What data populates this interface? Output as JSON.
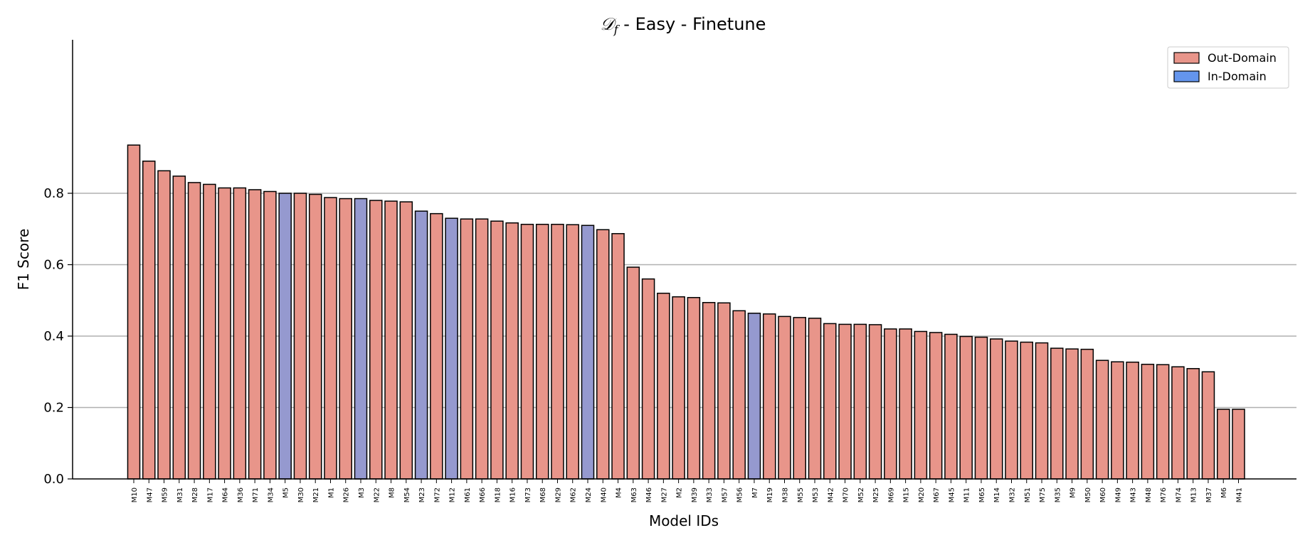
{
  "chart_data": {
    "type": "bar",
    "title_prefix": "𝒟",
    "title_subscript": "f",
    "title_rest": " - Easy - Finetune",
    "xlabel": "Model IDs",
    "ylabel": "F1 Score",
    "ylim": [
      0,
      0.98
    ],
    "yticks": [
      "0.0",
      "0.2",
      "0.4",
      "0.6",
      "0.8"
    ],
    "grid": "horizontal",
    "legend_position": "top-right",
    "legend": [
      {
        "label": "Out-Domain",
        "color": "#e8958a"
      },
      {
        "label": "In-Domain",
        "color": "#6495ed"
      }
    ],
    "colors": {
      "out_domain_bar": "#e8958a",
      "in_domain_bar": "#9599cf",
      "edge": "#000000",
      "grid": "#b0b0b0"
    },
    "categories": [
      "M10",
      "M47",
      "M59",
      "M31",
      "M28",
      "M17",
      "M64",
      "M36",
      "M71",
      "M34",
      "M5",
      "M30",
      "M21",
      "M1",
      "M26",
      "M3",
      "M22",
      "M8",
      "M54",
      "M23",
      "M72",
      "M12",
      "M61",
      "M66",
      "M18",
      "M16",
      "M73",
      "M68",
      "M29",
      "M62",
      "M24",
      "M40",
      "M4",
      "M63",
      "M46",
      "M27",
      "M2",
      "M39",
      "M33",
      "M57",
      "M56",
      "M7",
      "M19",
      "M38",
      "M55",
      "M53",
      "M42",
      "M70",
      "M52",
      "M25",
      "M69",
      "M15",
      "M20",
      "M67",
      "M45",
      "M11",
      "M65",
      "M14",
      "M32",
      "M51",
      "M75",
      "M35",
      "M9",
      "M50",
      "M60",
      "M49",
      "M43",
      "M48",
      "M76",
      "M74",
      "M13",
      "M37",
      "M6",
      "M41"
    ],
    "values": [
      0.935,
      0.89,
      0.863,
      0.848,
      0.83,
      0.825,
      0.815,
      0.815,
      0.81,
      0.805,
      0.8,
      0.8,
      0.797,
      0.788,
      0.785,
      0.785,
      0.78,
      0.778,
      0.776,
      0.75,
      0.743,
      0.73,
      0.728,
      0.728,
      0.722,
      0.717,
      0.713,
      0.713,
      0.713,
      0.712,
      0.71,
      0.698,
      0.687,
      0.593,
      0.56,
      0.52,
      0.51,
      0.508,
      0.494,
      0.493,
      0.471,
      0.464,
      0.462,
      0.455,
      0.452,
      0.45,
      0.435,
      0.433,
      0.433,
      0.432,
      0.42,
      0.42,
      0.413,
      0.41,
      0.405,
      0.399,
      0.397,
      0.392,
      0.386,
      0.383,
      0.381,
      0.366,
      0.364,
      0.363,
      0.332,
      0.328,
      0.327,
      0.321,
      0.32,
      0.314,
      0.309,
      0.3,
      0.195,
      0.195
    ],
    "in_domain": [
      "M5",
      "M3",
      "M23",
      "M12",
      "M24",
      "M7"
    ]
  }
}
